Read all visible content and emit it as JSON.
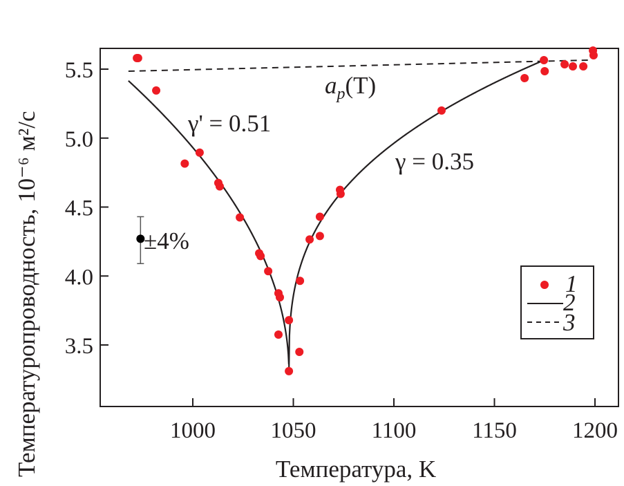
{
  "chart_data": {
    "type": "scatter",
    "title": "",
    "xlabel": "Температура, K",
    "ylabel": "Температуропроводность, 10⁻⁶ м²/с",
    "xlim": [
      955,
      1211
    ],
    "ylim": [
      3.06,
      5.65
    ],
    "xticks": [
      1000,
      1050,
      1100,
      1150,
      1200
    ],
    "yticks": [
      3.5,
      4.0,
      4.5,
      5.0,
      5.5
    ],
    "grid": false,
    "colors": {
      "points": "#ed1c24",
      "lines": "#231f20"
    },
    "series": [
      {
        "name": "1",
        "kind": "points",
        "points": [
          [
            972.2,
            5.58
          ],
          [
            972.8,
            5.58
          ],
          [
            981.8,
            5.345
          ],
          [
            996,
            4.815
          ],
          [
            1003.4,
            4.895
          ],
          [
            1012.7,
            4.675
          ],
          [
            1013.4,
            4.65
          ],
          [
            1023.4,
            4.425
          ],
          [
            1033,
            4.165
          ],
          [
            1033.7,
            4.145
          ],
          [
            1037.5,
            4.035
          ],
          [
            1042.6,
            3.875
          ],
          [
            1043.3,
            3.845
          ],
          [
            1042.6,
            3.575
          ],
          [
            1047.8,
            3.68
          ],
          [
            1047.8,
            3.31
          ],
          [
            1053,
            3.45
          ],
          [
            1053.3,
            3.965
          ],
          [
            1058.1,
            4.265
          ],
          [
            1063.2,
            4.29
          ],
          [
            1063.2,
            4.43
          ],
          [
            1073.2,
            4.625
          ],
          [
            1073.5,
            4.595
          ],
          [
            1123.7,
            5.2
          ],
          [
            1165,
            5.435
          ],
          [
            1174.6,
            5.565
          ],
          [
            1175,
            5.485
          ],
          [
            1184.9,
            5.535
          ],
          [
            1189,
            5.52
          ],
          [
            1194.2,
            5.52
          ],
          [
            1199,
            5.635
          ],
          [
            1199.3,
            5.6
          ]
        ]
      },
      {
        "name": "2",
        "kind": "fit",
        "Tc": 1047.8,
        "a_min": 3.31,
        "left": {
          "gamma": 0.51,
          "coef": 0.2256,
          "from": 968
        },
        "right": {
          "gamma": 0.35,
          "coef": 0.414,
          "to": 1174.6
        }
      },
      {
        "name": "3",
        "kind": "dashed",
        "points": [
          [
            968,
            5.485
          ],
          [
            1196.5,
            5.565
          ]
        ]
      }
    ],
    "error_bar": {
      "x": 974,
      "y": 4.27,
      "low": 4.09,
      "high": 4.43,
      "label": "±4%"
    },
    "annotations": {
      "ap": "a",
      "ap_sub": "p",
      "ap_arg": "(T)",
      "gamma_left": "γ' = 0.51",
      "gamma_right": "γ = 0.35"
    },
    "legend": {
      "placement": "lower-right",
      "entries": [
        "1",
        "2",
        "3"
      ]
    }
  }
}
